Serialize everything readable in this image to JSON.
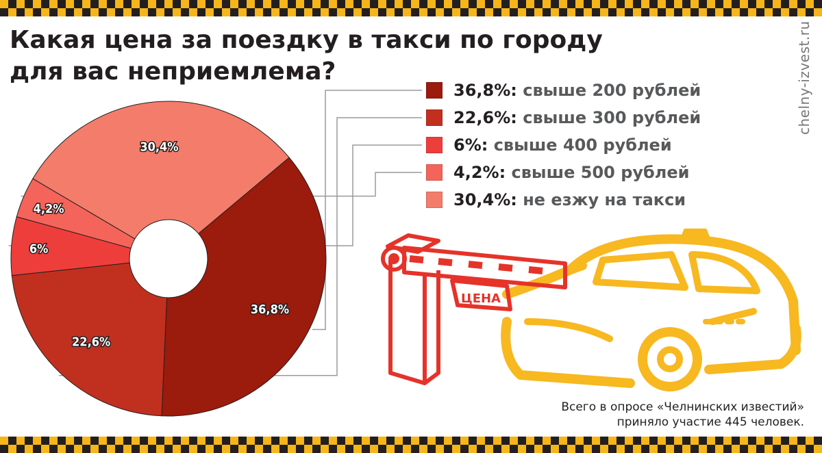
{
  "title": {
    "line1": "Какая цена за поездку в такси по городу",
    "line2": "для вас неприемлема?"
  },
  "watermark": "chelny-izvest.ru",
  "chart_data": {
    "type": "pie",
    "donut": true,
    "slices": [
      {
        "label": "свыше 200 рублей",
        "value": 36.8,
        "display": "36,8%",
        "color": "#9b1b0c"
      },
      {
        "label": "свыше 300 рублей",
        "value": 22.6,
        "display": "22,6%",
        "color": "#c1301f"
      },
      {
        "label": "свыше 400 рублей",
        "value": 6,
        "display": "6%",
        "color": "#ee3e3b"
      },
      {
        "label": "свыше 500 рублей",
        "value": 4.2,
        "display": "4,2%",
        "color": "#f4645a"
      },
      {
        "label": "не езжу на такси",
        "value": 30.4,
        "display": "30,4%",
        "color": "#f47c6a"
      }
    ],
    "legend_position": "right"
  },
  "illustration": {
    "sign_text": "ЦЕНА",
    "barrier_color": "#e5332a",
    "car_color": "#f7b820"
  },
  "footnote": {
    "line1": "Всего в опросе «Челнинских известий»",
    "line2": "приняло участие 445 человек."
  }
}
